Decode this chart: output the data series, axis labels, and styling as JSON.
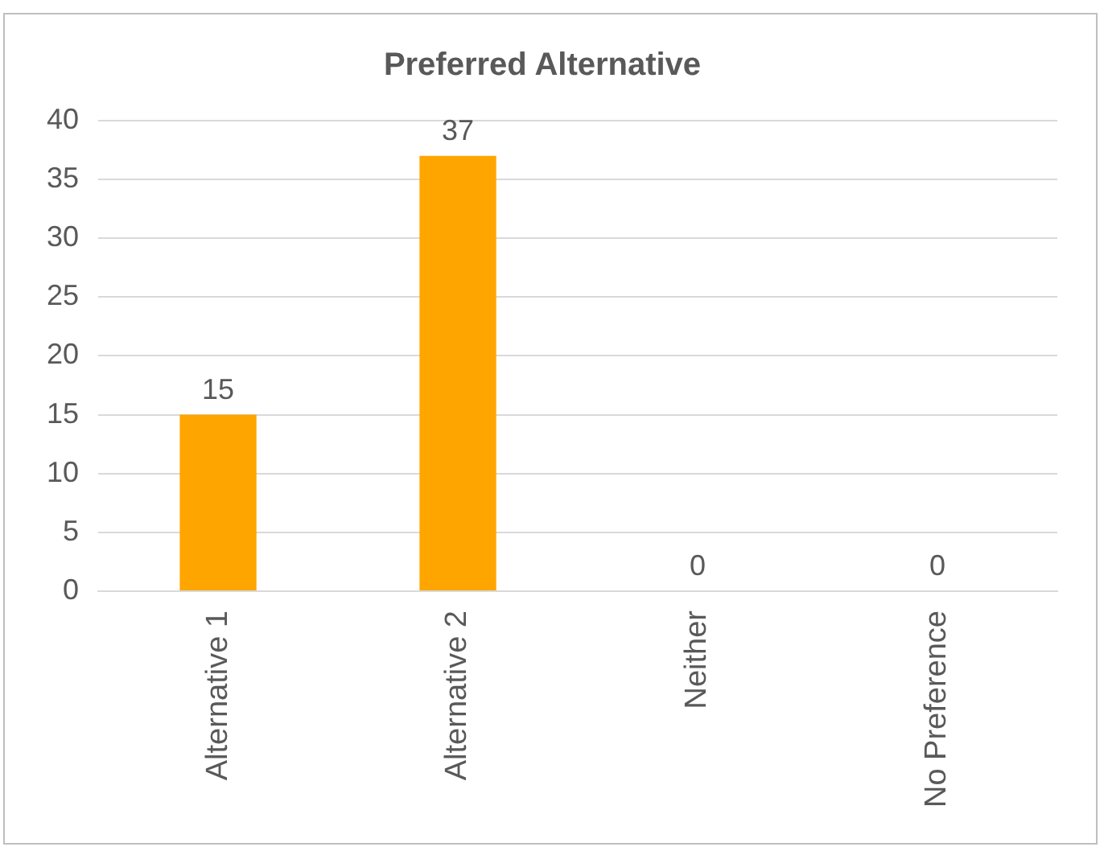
{
  "chart_data": {
    "type": "bar",
    "title": "Preferred Alternative",
    "categories": [
      "Alternative 1",
      "Alternative 2",
      "Neither",
      "No Preference"
    ],
    "values": [
      15,
      37,
      0,
      0
    ],
    "color": "#ffa500",
    "ylim": [
      0,
      40
    ],
    "yticks": [
      0,
      5,
      10,
      15,
      20,
      25,
      30,
      35,
      40
    ],
    "grid": "y",
    "data_labels": true
  }
}
